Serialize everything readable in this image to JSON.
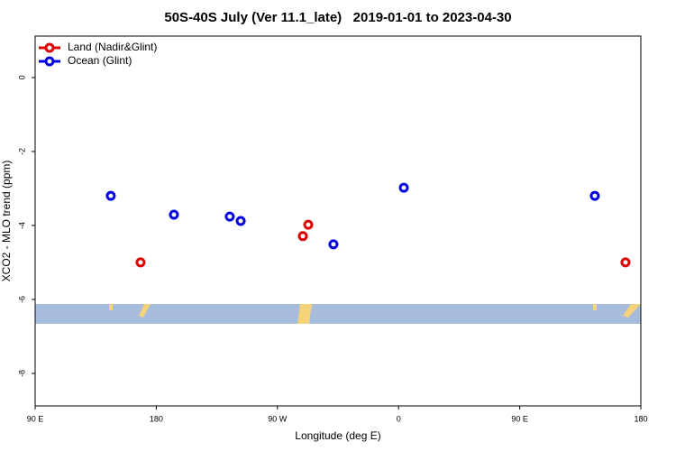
{
  "chart_data": {
    "type": "scatter",
    "title": "50S-40S July (Ver 11.1_late)   2019-01-01 to 2023-04-30",
    "x_label": "Longitude (deg E)",
    "y_label": "XCO2 - MLO trend (ppm)",
    "xlim": [
      90,
      540
    ],
    "xticks": [
      {
        "value": 90,
        "label": "90 E"
      },
      {
        "value": 180,
        "label": "180"
      },
      {
        "value": 270,
        "label": "90 W"
      },
      {
        "value": 360,
        "label": "0"
      },
      {
        "value": 450,
        "label": "90 E"
      },
      {
        "value": 540,
        "label": "180"
      }
    ],
    "ylim": [
      -8.88,
      1.12
    ],
    "yticks": [
      0,
      -2,
      -4,
      -6,
      -8
    ],
    "legend": "top-left",
    "series": [
      {
        "name": "Land (Nadir&Glint)",
        "color": "#e00000",
        "x": [
          168.3,
          288.9,
          292.9,
          528.6
        ],
        "values": [
          -5.0,
          -4.29,
          -3.98,
          -5.0
        ]
      },
      {
        "name": "Ocean (Glint)",
        "color": "#0000e0",
        "x": [
          146.2,
          193.1,
          234.6,
          242.7,
          311.6,
          363.9,
          505.8
        ],
        "values": [
          -3.2,
          -3.71,
          -3.76,
          -3.88,
          -4.51,
          -2.98,
          -3.2
        ]
      }
    ]
  }
}
